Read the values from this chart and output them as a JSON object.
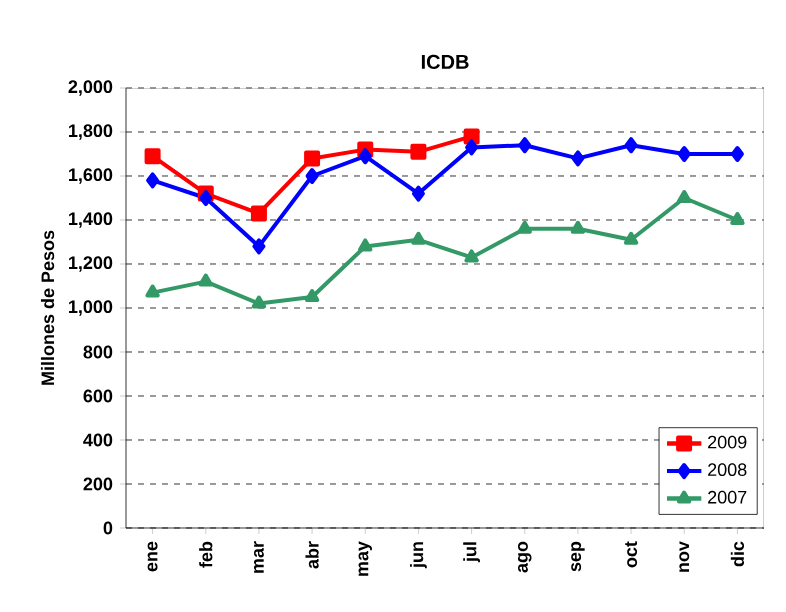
{
  "chart_data": {
    "type": "line",
    "title": "ICDB",
    "ylabel": "Millones de Pesos",
    "categories": [
      "ene",
      "feb",
      "mar",
      "abr",
      "may",
      "jun",
      "jul",
      "ago",
      "sep",
      "oct",
      "nov",
      "dic"
    ],
    "series": [
      {
        "name": "2009",
        "color": "#ff0000",
        "marker": "square",
        "values": [
          1690,
          1520,
          1430,
          1680,
          1720,
          1710,
          1780,
          null,
          null,
          null,
          null,
          null
        ]
      },
      {
        "name": "2008",
        "color": "#0000ff",
        "marker": "diamond",
        "values": [
          1580,
          1500,
          1280,
          1600,
          1690,
          1520,
          1730,
          1740,
          1680,
          1740,
          1700,
          1700
        ]
      },
      {
        "name": "2007",
        "color": "#339966",
        "marker": "triangle",
        "values": [
          1070,
          1120,
          1020,
          1050,
          1280,
          1310,
          1230,
          1360,
          1360,
          1310,
          1500,
          1400
        ]
      }
    ],
    "ylim": [
      0,
      2000
    ],
    "yticks": [
      {
        "value": 0,
        "label": "0"
      },
      {
        "value": 200,
        "label": "200"
      },
      {
        "value": 400,
        "label": "400"
      },
      {
        "value": 600,
        "label": "600"
      },
      {
        "value": 800,
        "label": "800"
      },
      {
        "value": 1000,
        "label": "1,000"
      },
      {
        "value": 1200,
        "label": "1,200"
      },
      {
        "value": 1400,
        "label": "1,400"
      },
      {
        "value": 1600,
        "label": "1,600"
      },
      {
        "value": 1800,
        "label": "1,800"
      },
      {
        "value": 2000,
        "label": "2,000"
      }
    ],
    "grid": "y",
    "legend": "bottom right"
  }
}
